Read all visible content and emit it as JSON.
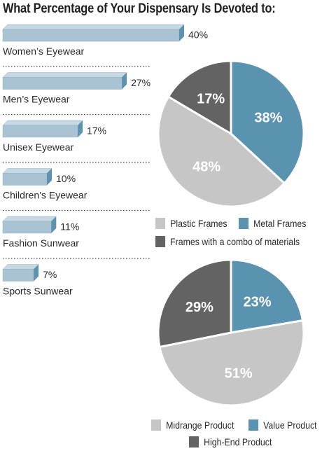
{
  "title": "What Percentage of Your Dispensary Is Devoted to:",
  "colors": {
    "bar_front": "#a9c3d3",
    "bar_top": "#c6d8e3",
    "bar_side": "#5e93ad",
    "dotted_line": "#444444",
    "light_gray": "#c6c6c6",
    "steel_blue": "#5a93b0",
    "dark_gray": "#636363"
  },
  "chart_data": [
    {
      "type": "bar",
      "orientation": "horizontal",
      "categories": [
        "Women’s Eyewear",
        "Men’s Eyewear",
        "Unisex Eyewear",
        "Children’s Eyewear",
        "Fashion Sunwear",
        "Sports Sunwear"
      ],
      "values": [
        40,
        27,
        17,
        10,
        11,
        7
      ],
      "value_labels": [
        "40%",
        "27%",
        "17%",
        "10%",
        "11%",
        "7%"
      ],
      "unit": "%"
    },
    {
      "type": "pie",
      "labels": [
        "Metal Frames",
        "Plastic Frames",
        "Frames with a combo of materials"
      ],
      "values": [
        38,
        48,
        17
      ],
      "value_labels": [
        "38%",
        "48%",
        "17%"
      ],
      "colors": [
        "#5a93b0",
        "#c6c6c6",
        "#636363"
      ],
      "legend": [
        "Plastic Frames",
        "Metal Frames",
        "Frames with a combo of materials"
      ],
      "legend_placement": "bottom"
    },
    {
      "type": "pie",
      "labels": [
        "Value Product",
        "Midrange Product",
        "High-End Product"
      ],
      "values": [
        23,
        51,
        29
      ],
      "value_labels": [
        "23%",
        "51%",
        "29%"
      ],
      "colors": [
        "#5a93b0",
        "#c6c6c6",
        "#636363"
      ],
      "legend": [
        "Midrange Product",
        "Value Product",
        "High-End Product"
      ],
      "legend_placement": "bottom"
    }
  ]
}
